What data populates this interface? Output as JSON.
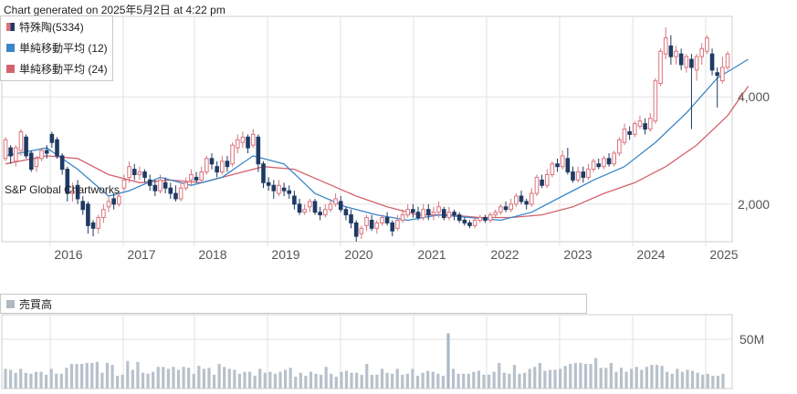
{
  "header": {
    "generated": "Chart generated on 2025年5月2日 at 4:22 pm"
  },
  "legend": [
    {
      "label": "特殊陶(5334)",
      "color": "#c9737d"
    },
    {
      "label": "単純移動平均 (12)",
      "color": "#3a86c6"
    },
    {
      "label": "単純移動平均 (24)",
      "color": "#d4636e"
    }
  ],
  "volume_legend": {
    "label": "売買高",
    "color": "#b0b8c1"
  },
  "watermark": "S&P Global Chartworks",
  "colors": {
    "up": "#d9737d",
    "down": "#1f3a64",
    "sma12": "#3a86c6",
    "sma24": "#d4636e",
    "volume": "#b8c1cb",
    "volume_spike": "#a8b8c6",
    "grid": "#e2e2e2"
  },
  "chart_data": [
    {
      "type": "candlestick",
      "title": "特殊陶(5334)",
      "x_ticks": [
        "2016",
        "2017",
        "2018",
        "2019",
        "2020",
        "2021",
        "2022",
        "2023",
        "2024",
        "2025"
      ],
      "y_ticks": [
        2000,
        4000
      ],
      "y_tick_labels": [
        "2,000",
        "4,000"
      ],
      "ylim": [
        1300,
        5500
      ],
      "grid": true,
      "candles": [
        [
          2850,
          3200,
          3250,
          2800
        ],
        [
          3050,
          2900,
          3100,
          2750
        ],
        [
          2800,
          3050,
          3100,
          2700
        ],
        [
          3000,
          3350,
          3400,
          2900
        ],
        [
          3250,
          2900,
          3300,
          2850
        ],
        [
          2950,
          2650,
          3000,
          2600
        ],
        [
          2700,
          2850,
          2900,
          2600
        ],
        [
          2850,
          3000,
          3050,
          2800
        ],
        [
          3000,
          2950,
          3100,
          2850
        ],
        [
          3300,
          3150,
          3350,
          3050
        ],
        [
          3200,
          2900,
          3250,
          2850
        ],
        [
          2900,
          2650,
          2950,
          2550
        ],
        [
          2650,
          2200,
          2700,
          2050
        ],
        [
          2200,
          2250,
          2400,
          2050
        ],
        [
          2350,
          2100,
          2450,
          2000
        ],
        [
          2050,
          1900,
          2150,
          1800
        ],
        [
          2000,
          1600,
          2050,
          1450
        ],
        [
          1650,
          1550,
          1700,
          1400
        ],
        [
          1550,
          1750,
          1800,
          1450
        ],
        [
          1750,
          1900,
          2000,
          1650
        ],
        [
          1950,
          2050,
          2150,
          1850
        ],
        [
          2100,
          2000,
          2200,
          1900
        ],
        [
          2000,
          2150,
          2250,
          1950
        ],
        [
          2300,
          2450,
          2550,
          2250
        ],
        [
          2500,
          2700,
          2800,
          2400
        ],
        [
          2650,
          2550,
          2750,
          2450
        ],
        [
          2550,
          2600,
          2700,
          2450
        ],
        [
          2600,
          2500,
          2650,
          2400
        ],
        [
          2450,
          2350,
          2550,
          2250
        ],
        [
          2350,
          2250,
          2450,
          2150
        ],
        [
          2250,
          2450,
          2550,
          2200
        ],
        [
          2400,
          2300,
          2500,
          2200
        ],
        [
          2300,
          2200,
          2400,
          2100
        ],
        [
          2200,
          2100,
          2350,
          2050
        ],
        [
          2100,
          2300,
          2400,
          2050
        ],
        [
          2300,
          2400,
          2500,
          2250
        ],
        [
          2450,
          2550,
          2650,
          2350
        ],
        [
          2500,
          2450,
          2600,
          2400
        ],
        [
          2450,
          2600,
          2700,
          2400
        ],
        [
          2600,
          2850,
          2900,
          2550
        ],
        [
          2850,
          2750,
          2950,
          2650
        ],
        [
          2700,
          2600,
          2800,
          2500
        ],
        [
          2600,
          2800,
          2900,
          2550
        ],
        [
          2800,
          2700,
          2900,
          2600
        ],
        [
          2750,
          3100,
          3150,
          2700
        ],
        [
          3050,
          3200,
          3300,
          2950
        ],
        [
          3150,
          3250,
          3350,
          3050
        ],
        [
          3250,
          3050,
          3300,
          2950
        ],
        [
          3100,
          3300,
          3400,
          3050
        ],
        [
          3250,
          2750,
          3300,
          2600
        ],
        [
          2750,
          2400,
          2800,
          2300
        ],
        [
          2400,
          2350,
          2500,
          2250
        ],
        [
          2350,
          2250,
          2450,
          2100
        ],
        [
          2200,
          2350,
          2450,
          2150
        ],
        [
          2300,
          2250,
          2400,
          2150
        ],
        [
          2250,
          2200,
          2350,
          2100
        ],
        [
          2150,
          2000,
          2250,
          1900
        ],
        [
          2000,
          1850,
          2100,
          1800
        ],
        [
          1850,
          1900,
          2000,
          1800
        ],
        [
          1950,
          2050,
          2100,
          1850
        ],
        [
          2050,
          1850,
          2100,
          1800
        ],
        [
          1850,
          1800,
          1950,
          1700
        ],
        [
          1800,
          1900,
          2000,
          1750
        ],
        [
          1900,
          2000,
          2100,
          1850
        ],
        [
          2000,
          2100,
          2200,
          1950
        ],
        [
          2050,
          1900,
          2150,
          1850
        ],
        [
          1900,
          1800,
          1950,
          1700
        ],
        [
          1800,
          1650,
          1900,
          1550
        ],
        [
          1650,
          1400,
          1700,
          1300
        ],
        [
          1450,
          1550,
          1600,
          1350
        ],
        [
          1600,
          1750,
          1800,
          1500
        ],
        [
          1700,
          1550,
          1800,
          1500
        ],
        [
          1550,
          1650,
          1700,
          1450
        ],
        [
          1650,
          1750,
          1800,
          1600
        ],
        [
          1750,
          1650,
          1850,
          1600
        ],
        [
          1650,
          1500,
          1700,
          1400
        ],
        [
          1550,
          1700,
          1800,
          1500
        ],
        [
          1700,
          1800,
          1900,
          1650
        ],
        [
          1800,
          1900,
          2000,
          1750
        ],
        [
          1900,
          1850,
          2000,
          1750
        ],
        [
          1850,
          1750,
          1950,
          1700
        ],
        [
          1750,
          1900,
          2000,
          1700
        ],
        [
          1900,
          1800,
          2000,
          1700
        ],
        [
          1800,
          1850,
          1950,
          1700
        ],
        [
          1850,
          1950,
          2050,
          1750
        ],
        [
          1900,
          1750,
          1950,
          1700
        ],
        [
          1750,
          1850,
          1950,
          1700
        ],
        [
          1850,
          1800,
          1900,
          1700
        ],
        [
          1800,
          1700,
          1850,
          1650
        ],
        [
          1700,
          1650,
          1750,
          1600
        ],
        [
          1650,
          1600,
          1700,
          1550
        ],
        [
          1600,
          1700,
          1750,
          1550
        ],
        [
          1700,
          1750,
          1800,
          1650
        ],
        [
          1750,
          1700,
          1800,
          1650
        ],
        [
          1700,
          1800,
          1850,
          1650
        ],
        [
          1800,
          1850,
          1900,
          1750
        ],
        [
          1850,
          1950,
          2000,
          1800
        ],
        [
          1950,
          1900,
          2050,
          1850
        ],
        [
          1900,
          2000,
          2100,
          1850
        ],
        [
          2000,
          2150,
          2200,
          1950
        ],
        [
          2150,
          2050,
          2250,
          2000
        ],
        [
          2050,
          2000,
          2100,
          1900
        ],
        [
          2000,
          2200,
          2300,
          1950
        ],
        [
          2200,
          2500,
          2550,
          2150
        ],
        [
          2450,
          2350,
          2550,
          2300
        ],
        [
          2350,
          2550,
          2650,
          2300
        ],
        [
          2550,
          2750,
          2800,
          2500
        ],
        [
          2750,
          2700,
          2850,
          2600
        ],
        [
          2700,
          2900,
          3000,
          2650
        ],
        [
          2850,
          2600,
          3050,
          2550
        ],
        [
          2600,
          2450,
          2700,
          2400
        ],
        [
          2450,
          2600,
          2700,
          2400
        ],
        [
          2600,
          2500,
          2700,
          2400
        ],
        [
          2500,
          2650,
          2750,
          2450
        ],
        [
          2650,
          2800,
          2850,
          2600
        ],
        [
          2750,
          2700,
          2850,
          2650
        ],
        [
          2700,
          2850,
          2900,
          2650
        ],
        [
          2850,
          2750,
          2950,
          2700
        ],
        [
          2750,
          2950,
          3000,
          2700
        ],
        [
          2950,
          3200,
          3250,
          2900
        ],
        [
          3150,
          3400,
          3500,
          3100
        ],
        [
          3350,
          3300,
          3450,
          3200
        ],
        [
          3300,
          3500,
          3550,
          3250
        ],
        [
          3450,
          3550,
          3650,
          3400
        ],
        [
          3500,
          3400,
          3600,
          3300
        ],
        [
          3400,
          3600,
          3700,
          3350
        ],
        [
          3550,
          4300,
          4350,
          3500
        ],
        [
          4250,
          4850,
          4900,
          4200
        ],
        [
          4800,
          5100,
          5300,
          4700
        ],
        [
          4950,
          4750,
          5150,
          4600
        ],
        [
          4750,
          4850,
          4950,
          4600
        ],
        [
          4800,
          4600,
          4900,
          4500
        ],
        [
          4550,
          4750,
          4800,
          4450
        ],
        [
          4700,
          4550,
          4800,
          3400
        ],
        [
          4500,
          4750,
          4800,
          4300
        ],
        [
          4750,
          4900,
          5000,
          4600
        ],
        [
          4850,
          5100,
          5150,
          4800
        ],
        [
          4800,
          4500,
          4900,
          4400
        ],
        [
          4450,
          4400,
          4550,
          3800
        ],
        [
          4300,
          4550,
          4750,
          4250
        ],
        [
          4550,
          4800,
          4850,
          4500
        ]
      ],
      "sma12": [
        [
          0,
          2900
        ],
        [
          8,
          3050
        ],
        [
          14,
          2650
        ],
        [
          20,
          2150
        ],
        [
          24,
          2250
        ],
        [
          30,
          2500
        ],
        [
          36,
          2350
        ],
        [
          42,
          2500
        ],
        [
          48,
          2900
        ],
        [
          54,
          2750
        ],
        [
          60,
          2200
        ],
        [
          66,
          1950
        ],
        [
          72,
          1800
        ],
        [
          78,
          1700
        ],
        [
          84,
          1800
        ],
        [
          90,
          1750
        ],
        [
          96,
          1700
        ],
        [
          102,
          1850
        ],
        [
          108,
          2150
        ],
        [
          114,
          2450
        ],
        [
          120,
          2700
        ],
        [
          126,
          3150
        ],
        [
          132,
          3700
        ],
        [
          138,
          4350
        ],
        [
          144,
          4700
        ]
      ],
      "sma24": [
        [
          0,
          2750
        ],
        [
          8,
          2900
        ],
        [
          14,
          2850
        ],
        [
          20,
          2550
        ],
        [
          26,
          2400
        ],
        [
          32,
          2450
        ],
        [
          38,
          2400
        ],
        [
          44,
          2550
        ],
        [
          50,
          2700
        ],
        [
          56,
          2650
        ],
        [
          62,
          2400
        ],
        [
          68,
          2150
        ],
        [
          74,
          1950
        ],
        [
          80,
          1800
        ],
        [
          86,
          1800
        ],
        [
          92,
          1750
        ],
        [
          98,
          1750
        ],
        [
          104,
          1800
        ],
        [
          110,
          1950
        ],
        [
          116,
          2200
        ],
        [
          122,
          2400
        ],
        [
          128,
          2700
        ],
        [
          134,
          3100
        ],
        [
          140,
          3650
        ],
        [
          144,
          4200
        ]
      ]
    },
    {
      "type": "bar",
      "title": "売買高",
      "y_ticks": [
        50
      ],
      "y_tick_labels": [
        "50M"
      ],
      "ylim": [
        0,
        75
      ],
      "values": [
        20,
        19,
        16,
        20,
        16,
        15,
        17,
        17,
        14,
        20,
        15,
        15,
        21,
        25,
        25,
        25,
        26,
        26,
        27,
        16,
        26,
        24,
        13,
        14,
        28,
        19,
        27,
        16,
        15,
        17,
        22,
        22,
        20,
        22,
        19,
        22,
        21,
        15,
        23,
        20,
        21,
        14,
        25,
        22,
        20,
        19,
        15,
        17,
        17,
        13,
        20,
        16,
        17,
        15,
        17,
        19,
        21,
        12,
        16,
        13,
        17,
        15,
        14,
        22,
        15,
        12,
        17,
        18,
        16,
        16,
        14,
        25,
        14,
        14,
        20,
        16,
        15,
        20,
        14,
        15,
        20,
        13,
        16,
        18,
        17,
        15,
        13,
        56,
        20,
        15,
        15,
        15,
        17,
        18,
        14,
        14,
        17,
        26,
        16,
        15,
        24,
        15,
        16,
        20,
        22,
        26,
        18,
        19,
        19,
        20,
        23,
        25,
        26,
        26,
        25,
        25,
        31,
        21,
        21,
        26,
        17,
        21,
        17,
        20,
        22,
        19,
        22,
        24,
        24,
        23,
        17,
        15,
        20,
        17,
        19,
        18,
        16,
        14,
        15,
        13,
        13,
        15
      ]
    }
  ]
}
